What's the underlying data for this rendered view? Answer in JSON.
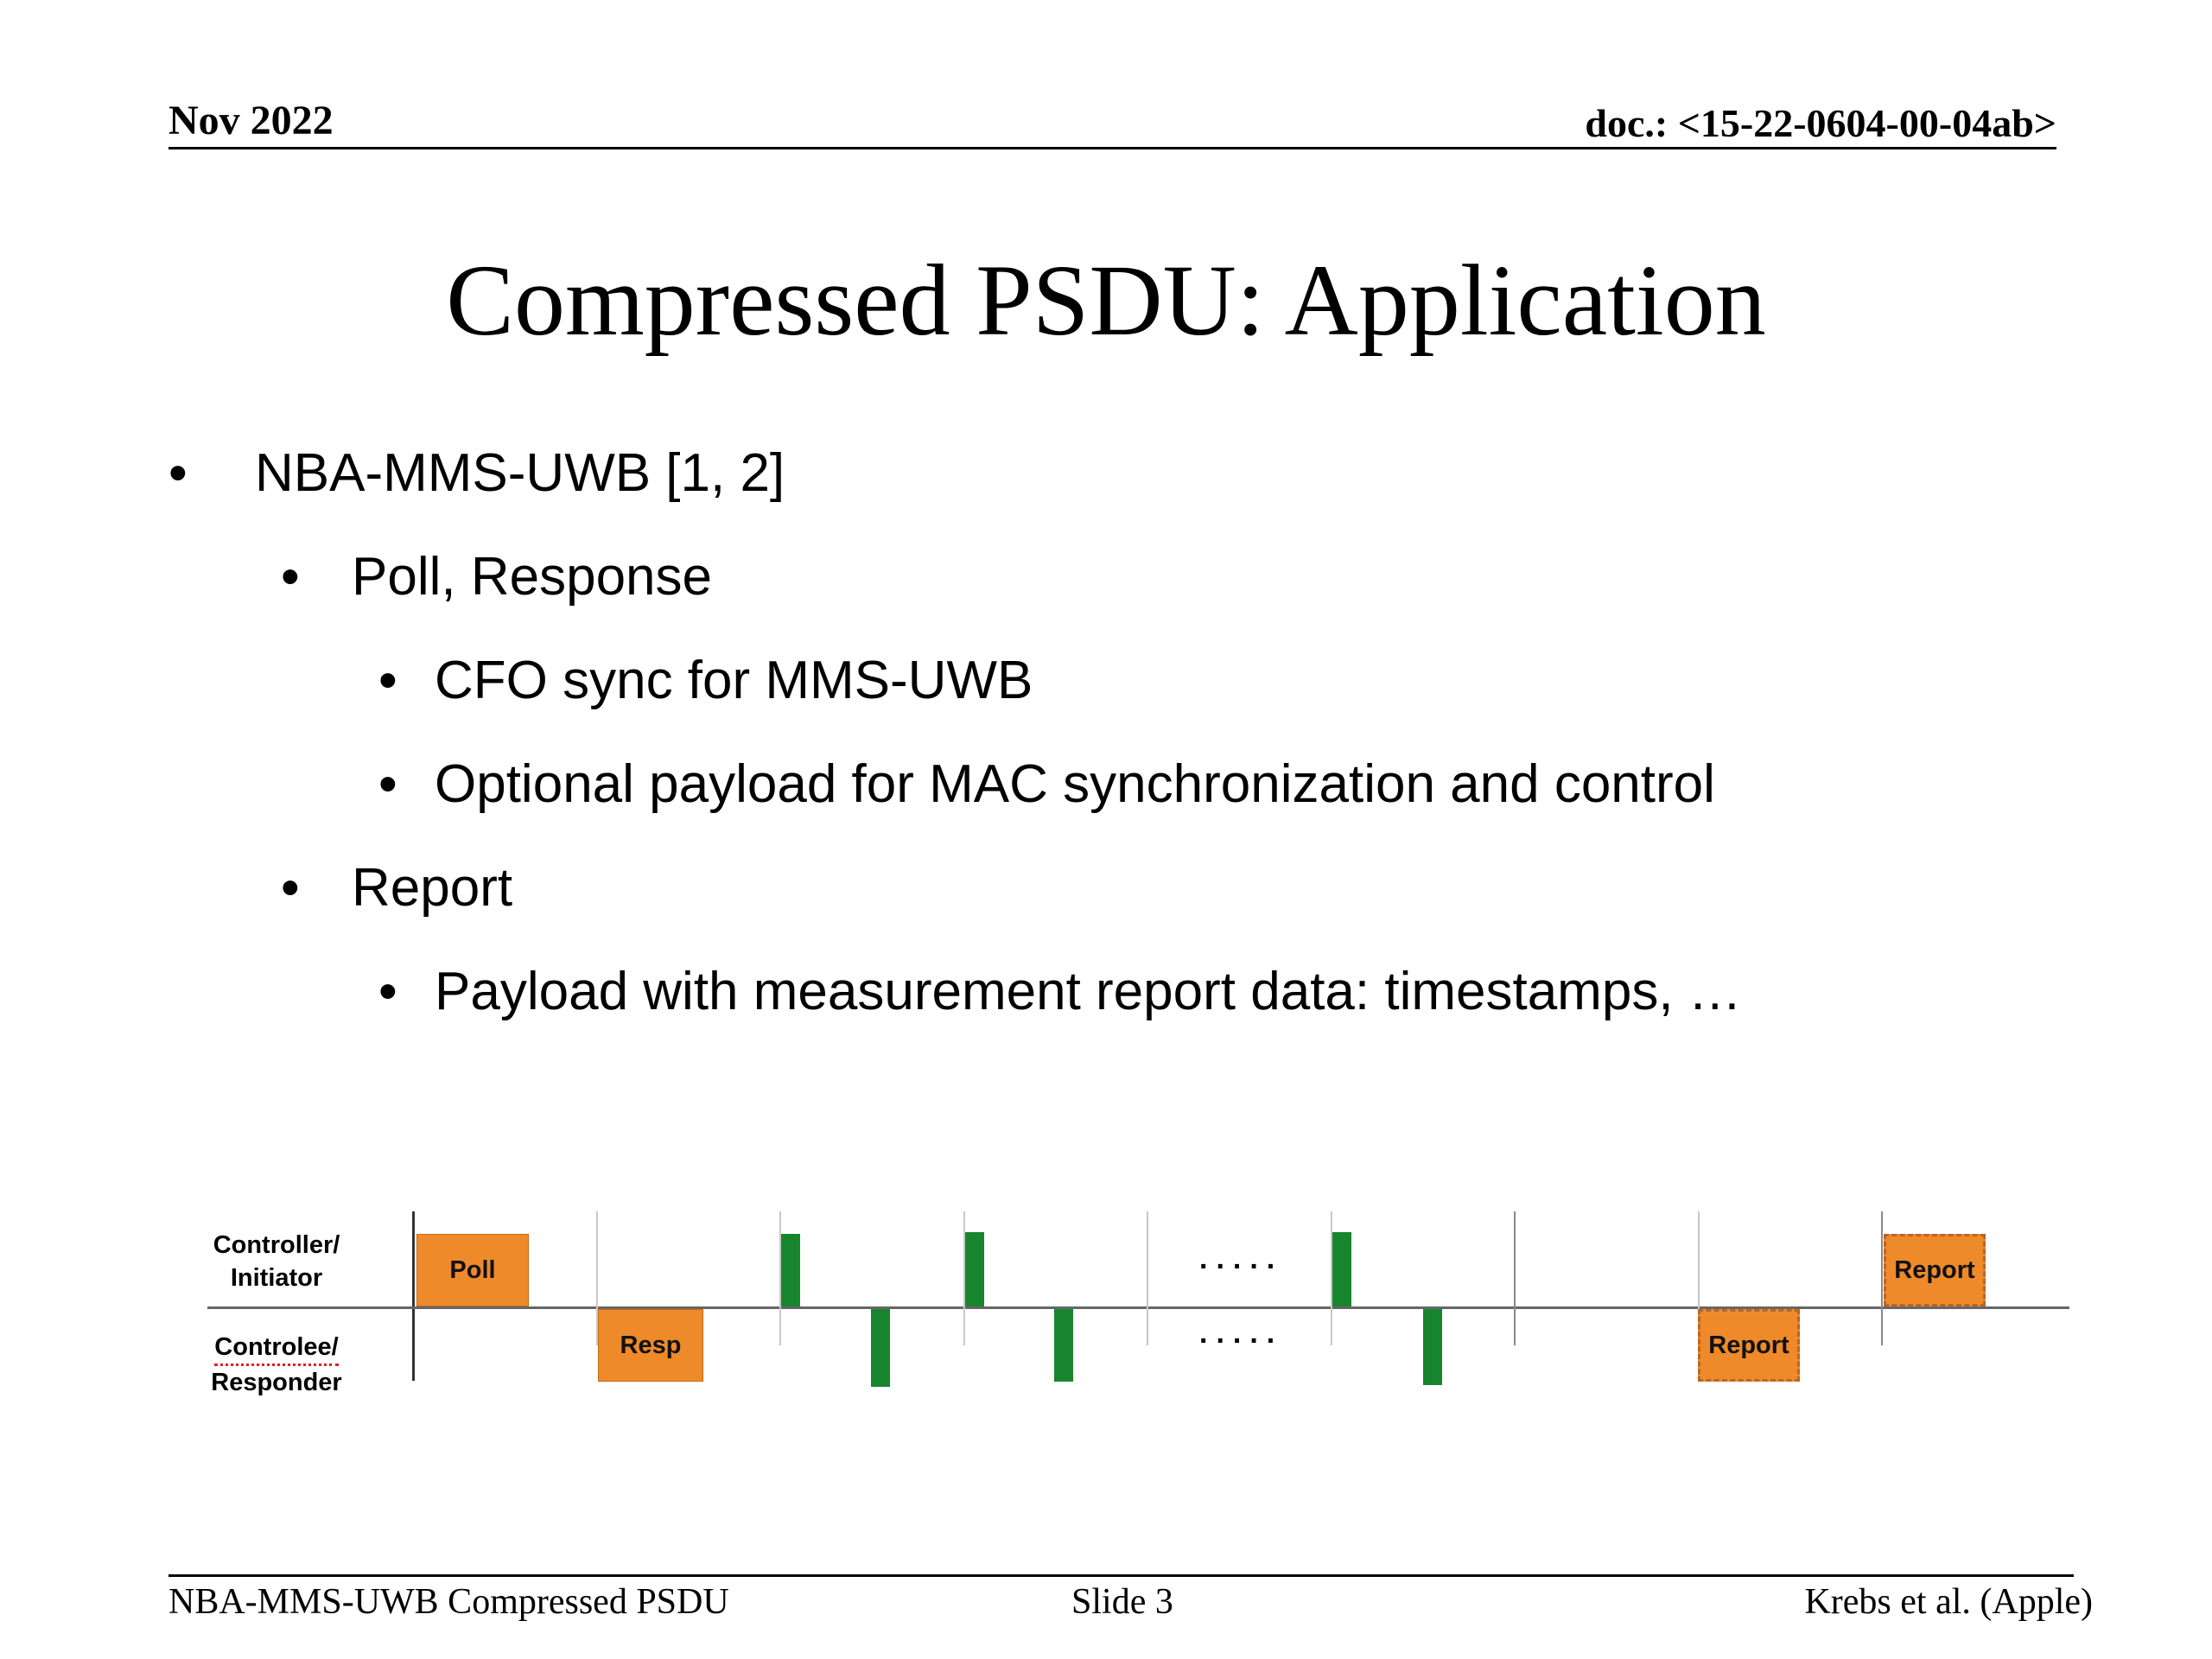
{
  "header": {
    "date": "Nov 2022",
    "doc": "doc.: <15-22-0604-00-04ab>"
  },
  "title": "Compressed PSDU: Application",
  "bullets": [
    {
      "level": 1,
      "text": "NBA-MMS-UWB [1, 2]"
    },
    {
      "level": 2,
      "text": "Poll, Response"
    },
    {
      "level": 3,
      "text": "CFO sync for MMS-UWB"
    },
    {
      "level": 3,
      "text": "Optional payload for MAC synchronization and control"
    },
    {
      "level": 2,
      "text": "Report"
    },
    {
      "level": 3,
      "text": "Payload with measurement report data: timestamps, …"
    }
  ],
  "diagram": {
    "lane_top_line1": "Controller/",
    "lane_top_line2": "Initiator",
    "lane_bottom_line1": "Controlee/",
    "lane_bottom_line2": "Responder",
    "poll": "Poll",
    "resp": "Resp",
    "report_responder": "Report",
    "report_initiator": "Report",
    "ellipsis": "....."
  },
  "footer": {
    "left": "NBA-MMS-UWB Compressed PSDU",
    "center": "Slide 3",
    "right": "Krebs et al. (Apple)"
  },
  "colors": {
    "frame": "#ef8a2a",
    "pulse": "#17852e"
  }
}
